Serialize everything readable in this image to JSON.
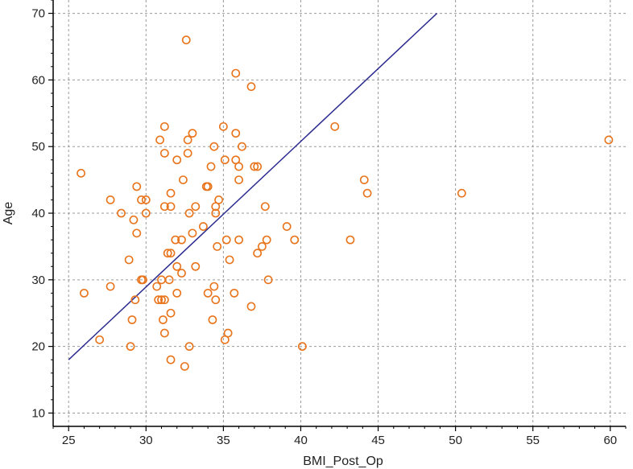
{
  "chart_data": {
    "type": "scatter",
    "title": "",
    "xlabel": "BMI_Post_Op",
    "ylabel": "Age",
    "xlim": [
      24,
      61
    ],
    "ylim": [
      8,
      72
    ],
    "x_ticks": [
      25,
      30,
      35,
      40,
      45,
      50,
      55,
      60
    ],
    "y_ticks": [
      10,
      20,
      30,
      40,
      50,
      60,
      70
    ],
    "grid": true,
    "colors": {
      "points": "#e8741c",
      "fit_line": "#2b2b8f",
      "grid": "#9a9a9a",
      "axis": "#000000"
    },
    "fit_line": {
      "x": [
        25.0,
        48.8
      ],
      "y": [
        18.0,
        70.0
      ]
    },
    "series": [
      {
        "points": [
          [
            25.8,
            46
          ],
          [
            26.0,
            28
          ],
          [
            27.0,
            21
          ],
          [
            27.7,
            42
          ],
          [
            27.7,
            29
          ],
          [
            28.4,
            40
          ],
          [
            28.9,
            33
          ],
          [
            29.0,
            20
          ],
          [
            29.1,
            24
          ],
          [
            29.2,
            39
          ],
          [
            29.3,
            27
          ],
          [
            29.4,
            37
          ],
          [
            29.4,
            44
          ],
          [
            29.7,
            42
          ],
          [
            29.7,
            30
          ],
          [
            29.8,
            30
          ],
          [
            30.0,
            42
          ],
          [
            30.0,
            40
          ],
          [
            30.7,
            29
          ],
          [
            30.8,
            27
          ],
          [
            30.9,
            51
          ],
          [
            31.0,
            27
          ],
          [
            31.0,
            30
          ],
          [
            31.1,
            24
          ],
          [
            31.2,
            53
          ],
          [
            31.2,
            49
          ],
          [
            31.2,
            41
          ],
          [
            31.2,
            27
          ],
          [
            31.2,
            22
          ],
          [
            31.4,
            34
          ],
          [
            31.5,
            30
          ],
          [
            31.6,
            34
          ],
          [
            31.6,
            25
          ],
          [
            31.6,
            18
          ],
          [
            31.6,
            41
          ],
          [
            31.6,
            43
          ],
          [
            31.9,
            36
          ],
          [
            32.0,
            48
          ],
          [
            32.0,
            32
          ],
          [
            32.0,
            28
          ],
          [
            32.3,
            31
          ],
          [
            32.3,
            36
          ],
          [
            32.4,
            45
          ],
          [
            32.5,
            17
          ],
          [
            32.6,
            66
          ],
          [
            32.7,
            51
          ],
          [
            32.7,
            49
          ],
          [
            32.8,
            20
          ],
          [
            32.8,
            40
          ],
          [
            33.0,
            52
          ],
          [
            33.0,
            37
          ],
          [
            33.2,
            41
          ],
          [
            33.2,
            32
          ],
          [
            33.7,
            38
          ],
          [
            33.9,
            44
          ],
          [
            34.0,
            44
          ],
          [
            34.0,
            28
          ],
          [
            34.2,
            47
          ],
          [
            34.3,
            24
          ],
          [
            34.4,
            29
          ],
          [
            34.4,
            50
          ],
          [
            34.5,
            41
          ],
          [
            34.5,
            40
          ],
          [
            34.5,
            27
          ],
          [
            34.6,
            35
          ],
          [
            34.7,
            42
          ],
          [
            35.0,
            53
          ],
          [
            35.1,
            21
          ],
          [
            35.1,
            48
          ],
          [
            35.2,
            36
          ],
          [
            35.3,
            22
          ],
          [
            35.4,
            33
          ],
          [
            35.7,
            28
          ],
          [
            35.8,
            61
          ],
          [
            35.8,
            48
          ],
          [
            35.8,
            52
          ],
          [
            36.0,
            45
          ],
          [
            36.0,
            47
          ],
          [
            36.0,
            36
          ],
          [
            36.2,
            50
          ],
          [
            36.8,
            59
          ],
          [
            36.8,
            26
          ],
          [
            37.0,
            47
          ],
          [
            37.2,
            47
          ],
          [
            37.2,
            34
          ],
          [
            37.5,
            35
          ],
          [
            37.7,
            41
          ],
          [
            37.8,
            36
          ],
          [
            37.9,
            30
          ],
          [
            39.1,
            38
          ],
          [
            39.6,
            36
          ],
          [
            40.1,
            20
          ],
          [
            42.2,
            53
          ],
          [
            43.2,
            36
          ],
          [
            44.1,
            45
          ],
          [
            44.3,
            43
          ],
          [
            50.4,
            43
          ],
          [
            59.9,
            51
          ]
        ]
      }
    ]
  }
}
